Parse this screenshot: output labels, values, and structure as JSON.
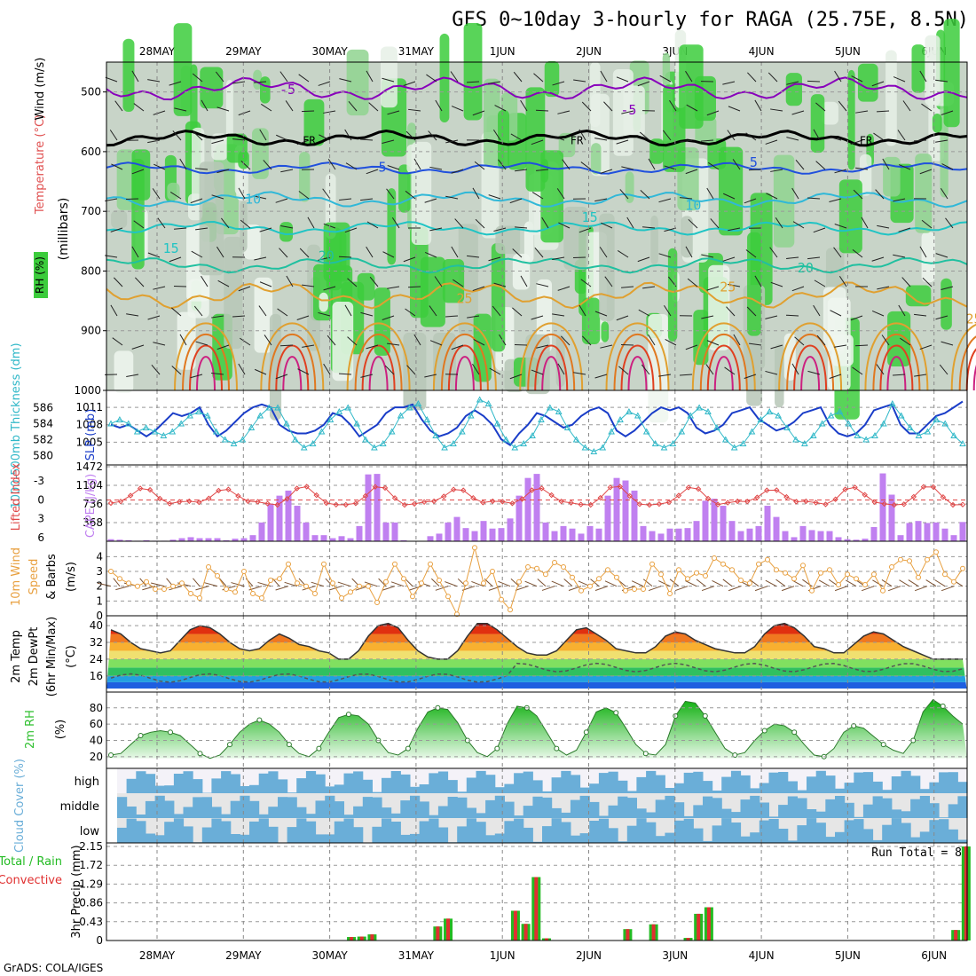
{
  "title": "GFS 0~10day 3-hourly for RAGA (25.75E, 8.5N)",
  "credit": "GrADS: COLA/IGES",
  "colors": {
    "rh_green": "#3ccc3c",
    "rh_light": "#e8f4e8",
    "rh_grey": "#c8d4c8",
    "temp_purple": "#8800bb",
    "temp_black": "#000000",
    "temp_blue": "#2050dd",
    "temp_cyan": "#30b8d8",
    "temp_teal": "#20c0a0",
    "temp_orange": "#e0a030",
    "temp_red": "#e04020",
    "slp": "#1a3dc8",
    "thickness": "#30b8c8",
    "lifted_index": "#e04848",
    "cape": "#c080f0",
    "wind": "#e8a040",
    "rh2m": "#30c030",
    "cloud": "#6aaed8",
    "precip_total": "#22bb22",
    "precip_conv": "#e03030"
  },
  "chart_data": [
    {
      "panel": "profile",
      "type": "heatmap",
      "label_rh": "RH (%)",
      "label_temp": "Temperature (°C)",
      "label_wind": "Wind (m/s)",
      "ylabel": "(millibars)",
      "yticks": [
        500,
        600,
        700,
        800,
        900,
        1000
      ],
      "ylim": [
        450,
        1000
      ],
      "x_labels": [
        "28MAY",
        "29MAY",
        "30MAY",
        "31MAY",
        "1JUN",
        "2JUN",
        "3JUN",
        "4JUN",
        "5JUN",
        "6JUN"
      ],
      "contour_labels": [
        {
          "text": "-5",
          "x": 1.6,
          "p": 496
        },
        {
          "text": "-5",
          "x": 5.55,
          "p": 530
        },
        {
          "text": "FR",
          "x": 1.85,
          "p": 580
        },
        {
          "text": "FR",
          "x": 4.95,
          "p": 580
        },
        {
          "text": "FR",
          "x": 8.3,
          "p": 580
        },
        {
          "text": "5",
          "x": 2.7,
          "p": 626
        },
        {
          "text": "5",
          "x": 7.0,
          "p": 618
        },
        {
          "text": "10",
          "x": 1.2,
          "p": 680
        },
        {
          "text": "10",
          "x": 6.3,
          "p": 690
        },
        {
          "text": "15",
          "x": 0.25,
          "p": 762
        },
        {
          "text": "15",
          "x": 5.1,
          "p": 710
        },
        {
          "text": "20",
          "x": 2.05,
          "p": 775
        },
        {
          "text": "20",
          "x": 7.6,
          "p": 795
        },
        {
          "text": "25",
          "x": 3.65,
          "p": 846
        },
        {
          "text": "25",
          "x": 6.7,
          "p": 827
        },
        {
          "text": "25",
          "x": 9.55,
          "p": 880
        }
      ],
      "isotherm_levels": [
        -5,
        0,
        5,
        10,
        15,
        20,
        25
      ]
    },
    {
      "panel": "slp_thickness",
      "type": "line",
      "label_thk": "1000-500mb Thickness (dm)",
      "label_slp": "SLP (mb)",
      "y_left_ticks": [
        580,
        582,
        584,
        586
      ],
      "y_right_ticks": [
        1005,
        1008,
        1011
      ],
      "slp_lim": [
        1002,
        1013
      ],
      "thk_lim": [
        579.5,
        587.5
      ],
      "series": [
        {
          "name": "SLP",
          "values": [
            1008,
            1007.5,
            1008,
            1007,
            1006,
            1007,
            1008.5,
            1010,
            1009.5,
            1010,
            1011,
            1008,
            1006,
            1007,
            1008.5,
            1010,
            1011,
            1011.5,
            1011,
            1008,
            1007,
            1006.5,
            1006.5,
            1007,
            1008,
            1010,
            1009.5,
            1008,
            1006,
            1007,
            1008,
            1010,
            1011,
            1011,
            1011.5,
            1009,
            1007,
            1006,
            1006.5,
            1007.5,
            1009.5,
            1010.5,
            1009.5,
            1008,
            1005.5,
            1004.5,
            1006.5,
            1008,
            1010,
            1009.5,
            1008.5,
            1007.5,
            1008,
            1009.5,
            1010.5,
            1011,
            1010,
            1007,
            1006,
            1007,
            1008.5,
            1010,
            1011,
            1010.5,
            1011,
            1010,
            1007.5,
            1006.5,
            1007,
            1008,
            1010,
            1010.5,
            1011,
            1009,
            1008,
            1007,
            1007.5,
            1008.5,
            1010,
            1010.5,
            1011,
            1008,
            1006.5,
            1006,
            1006.5,
            1008,
            1010.5,
            1011,
            1011.5,
            1008,
            1006.5,
            1006.5,
            1008,
            1009.5,
            1010,
            1011,
            1012
          ]
        },
        {
          "name": "Thickness",
          "values": [
            584,
            584.5,
            584,
            583,
            583.5,
            583,
            582.5,
            583,
            584,
            585,
            585.5,
            585,
            583,
            582,
            581.5,
            582,
            583.5,
            585,
            586,
            586,
            584,
            582,
            581,
            581.5,
            583,
            584.5,
            585.5,
            586,
            584,
            582,
            581,
            581.5,
            583,
            585,
            586,
            586.5,
            584.5,
            582.5,
            581,
            581.5,
            583,
            585,
            587,
            586.5,
            584,
            582,
            581,
            581.5,
            582.5,
            584.5,
            586,
            585.5,
            583.5,
            582,
            581,
            580.5,
            581,
            583,
            584.5,
            585.5,
            585,
            583,
            581.5,
            581,
            581.5,
            583,
            585,
            586,
            585.5,
            583.5,
            582,
            581,
            581.5,
            583,
            584.5,
            585.5,
            585,
            583.5,
            582,
            581.5,
            582.5,
            584,
            585,
            585.5,
            584,
            582.5,
            582,
            582.5,
            584,
            586.5,
            585,
            583.5,
            582.5,
            583,
            584.5,
            584,
            582.5,
            581.5
          ]
        }
      ]
    },
    {
      "panel": "cape_li",
      "type": "bar",
      "label_li": "Lifted Index",
      "label_cape": "CAPE (J/kg)",
      "li_ticks": [
        -3,
        0,
        3,
        6
      ],
      "cape_ticks": [
        368,
        736,
        1104,
        1472
      ],
      "li_lim": [
        -5,
        6
      ],
      "cape_lim": [
        0,
        1472
      ],
      "cape": [
        40,
        30,
        20,
        10,
        20,
        10,
        10,
        30,
        60,
        80,
        60,
        60,
        60,
        20,
        50,
        60,
        120,
        370,
        740,
        900,
        1000,
        700,
        370,
        120,
        120,
        60,
        100,
        60,
        300,
        1320,
        1330,
        370,
        370,
        20,
        0,
        0,
        100,
        150,
        370,
        480,
        260,
        200,
        400,
        250,
        260,
        450,
        900,
        1250,
        1330,
        370,
        200,
        300,
        250,
        150,
        300,
        250,
        900,
        1250,
        1200,
        1000,
        300,
        200,
        150,
        250,
        250,
        260,
        400,
        800,
        840,
        700,
        400,
        200,
        250,
        300,
        700,
        480,
        200,
        80,
        300,
        220,
        200,
        200,
        80,
        40,
        30,
        50,
        280,
        1340,
        920,
        120,
        360,
        400,
        360,
        370,
        250,
        120,
        380
      ]
    },
    {
      "panel": "wind10m",
      "type": "line",
      "label": "10m Wind Speed & Barbs (m/s)",
      "yticks": [
        0,
        1,
        2,
        3,
        4
      ],
      "ylim": [
        0,
        4.8
      ],
      "values": [
        3,
        2.5,
        2.2,
        2,
        2.3,
        1.8,
        1.8,
        2,
        2.2,
        1.5,
        1.2,
        3.3,
        2.7,
        1.8,
        1.6,
        3,
        1.5,
        1.2,
        2.4,
        2.5,
        3.5,
        2.2,
        2,
        1.5,
        3.5,
        2.2,
        1.2,
        1.6,
        2,
        2,
        0.9,
        2.3,
        3.5,
        2.5,
        1.3,
        2.2,
        3.5,
        2.4,
        1.3,
        0.1,
        2.2,
        4.6,
        2.2,
        3,
        1.1,
        0.4,
        2.3,
        3.3,
        3.2,
        2.8,
        3.6,
        3.3,
        2.6,
        1.7,
        2,
        2.5,
        3.1,
        2.6,
        1.7,
        1.8,
        1.8,
        3.5,
        2.8,
        1.5,
        3.1,
        2.5,
        2.9,
        2.7,
        3.9,
        3.5,
        3.1,
        2.4,
        2.2,
        3.5,
        3.8,
        3.1,
        2.9,
        2.5,
        3.4,
        1.7,
        2.9,
        3.1,
        2.1,
        2.8,
        2.5,
        2.1,
        2.8,
        1.7,
        3.3,
        3.8,
        3.7,
        2.6,
        3.8,
        4.3,
        2.8,
        2.3,
        3.2
      ]
    },
    {
      "panel": "temp2m",
      "type": "area",
      "label": "2m Temp 2m DewPt (6hr Min/Max) (°C)",
      "yticks": [
        16,
        24,
        32,
        40
      ],
      "ylim": [
        10,
        43
      ],
      "temp": [
        38,
        36,
        32,
        29,
        28,
        27,
        28,
        33,
        38,
        40,
        39,
        36,
        32,
        29,
        28,
        29,
        33,
        36,
        34,
        31,
        30,
        28,
        27,
        24,
        24,
        28,
        35,
        40,
        41,
        39,
        33,
        28,
        25,
        24,
        24,
        28,
        35,
        41,
        41,
        38,
        34,
        30,
        27,
        26,
        26,
        28,
        33,
        38,
        39,
        36,
        33,
        29,
        28,
        27,
        27,
        30,
        35,
        37,
        36,
        33,
        31,
        29,
        28,
        27,
        27,
        30,
        36,
        40,
        41,
        39,
        35,
        30,
        29,
        27,
        27,
        31,
        35,
        37,
        36,
        33,
        30,
        28,
        26,
        24,
        24,
        24,
        24
      ]
    },
    {
      "panel": "rh2m",
      "type": "area",
      "label": "2m RH (%)",
      "yticks": [
        20,
        40,
        60,
        80
      ],
      "ylim": [
        10,
        95
      ],
      "values": [
        22,
        24,
        35,
        46,
        50,
        52,
        50,
        46,
        35,
        24,
        18,
        22,
        35,
        50,
        60,
        65,
        60,
        50,
        35,
        24,
        20,
        30,
        50,
        68,
        72,
        70,
        60,
        40,
        25,
        22,
        30,
        55,
        75,
        80,
        78,
        62,
        40,
        25,
        20,
        30,
        60,
        82,
        80,
        70,
        50,
        30,
        22,
        28,
        50,
        75,
        80,
        74,
        55,
        35,
        24,
        22,
        35,
        70,
        88,
        86,
        70,
        50,
        30,
        22,
        25,
        40,
        52,
        60,
        58,
        50,
        35,
        22,
        20,
        30,
        50,
        58,
        55,
        45,
        35,
        28,
        24,
        40,
        75,
        90,
        82,
        70,
        60
      ]
    },
    {
      "panel": "cloud",
      "type": "heatmap",
      "label": "Cloud Cover (%)",
      "rows": [
        "high",
        "middle",
        "low"
      ]
    },
    {
      "panel": "precip",
      "type": "bar",
      "label_total": "Total / Rain",
      "label_conv": "Convective",
      "ylabel": "3hr Precip (mm)",
      "yticks": [
        0,
        0.43,
        0.86,
        1.29,
        1.72,
        2.15
      ],
      "ylim": [
        0,
        2.15
      ],
      "run_total": "Run Total = 8",
      "x_labels": [
        "28MAY",
        "29MAY",
        "30MAY",
        "31MAY",
        "1JUN",
        "2JUN",
        "3JUN",
        "4JUN",
        "5JUN",
        "6JUN"
      ],
      "events": [
        {
          "t": 2.7,
          "v": 0.08
        },
        {
          "t": 2.82,
          "v": 0.09
        },
        {
          "t": 2.94,
          "v": 0.14
        },
        {
          "t": 3.7,
          "v": 0.32
        },
        {
          "t": 3.82,
          "v": 0.5
        },
        {
          "t": 4.6,
          "v": 0.68
        },
        {
          "t": 4.72,
          "v": 0.38
        },
        {
          "t": 4.84,
          "v": 1.45
        },
        {
          "t": 4.96,
          "v": 0.05
        },
        {
          "t": 5.9,
          "v": 0.26
        },
        {
          "t": 6.2,
          "v": 0.37
        },
        {
          "t": 6.6,
          "v": 0.06
        },
        {
          "t": 6.72,
          "v": 0.61
        },
        {
          "t": 6.84,
          "v": 0.76
        },
        {
          "t": 9.7,
          "v": 0.24
        },
        {
          "t": 9.82,
          "v": 2.15
        }
      ]
    }
  ]
}
